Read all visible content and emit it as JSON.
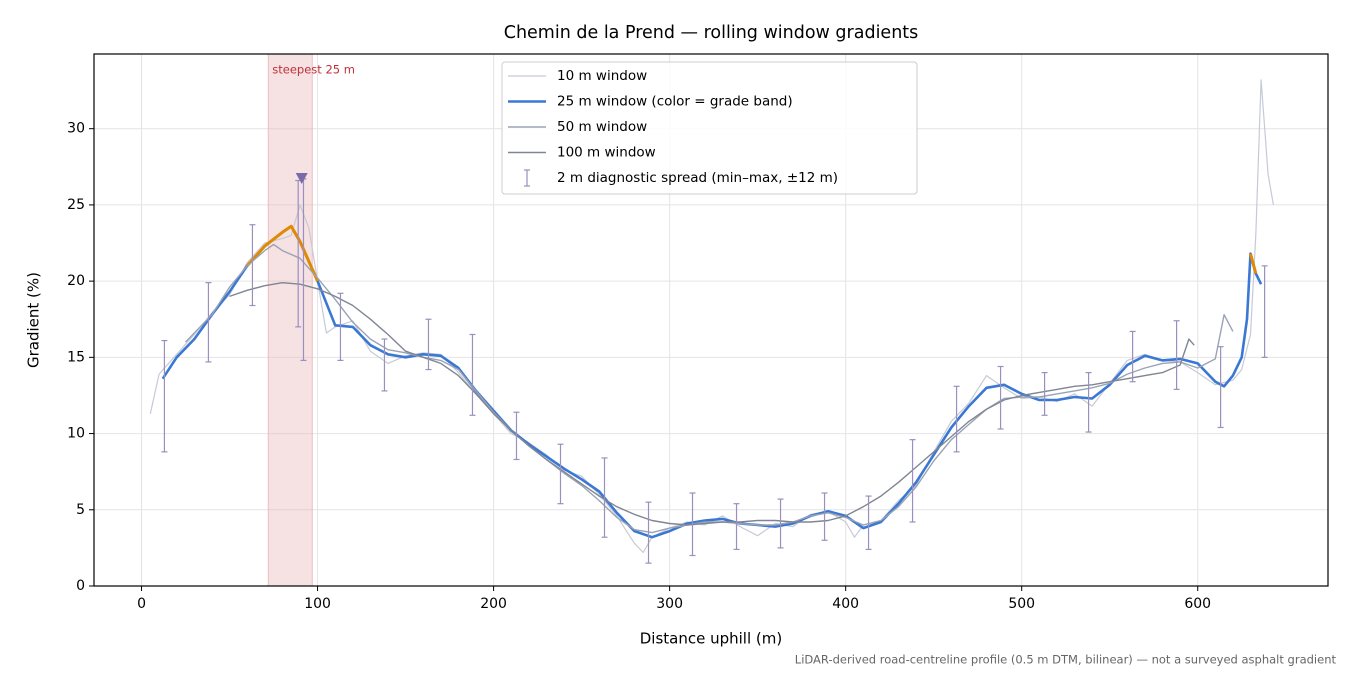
{
  "chart_data": {
    "type": "line",
    "title": "Chemin de la Prend — rolling window gradients",
    "xlabel": "Distance uphill (m)",
    "ylabel": "Gradient (%)",
    "footnote": "LiDAR-derived road-centreline profile (0.5 m DTM, bilinear) — not a surveyed asphalt gradient",
    "xlim": [
      -27,
      674
    ],
    "ylim": [
      0,
      34.9
    ],
    "xticks": [
      0,
      100,
      200,
      300,
      400,
      500,
      600
    ],
    "yticks": [
      0,
      5,
      10,
      15,
      20,
      25,
      30
    ],
    "grid": true,
    "legend": "upper center",
    "span": {
      "x": [
        72,
        97
      ],
      "color": "#e8b4b8",
      "label": "steepest 25 m",
      "label_color": "#c0303a"
    },
    "marker": {
      "x": 91,
      "y": 26.7,
      "color": "#7b6aa8"
    },
    "series": [
      {
        "name": "10 m window",
        "color": "#c5cad6",
        "width": 1.2,
        "x": [
          5,
          10,
          20,
          30,
          40,
          50,
          60,
          70,
          80,
          85,
          90,
          95,
          100,
          105,
          110,
          120,
          130,
          140,
          150,
          160,
          170,
          180,
          190,
          200,
          210,
          220,
          230,
          240,
          250,
          260,
          270,
          280,
          285,
          290,
          300,
          310,
          320,
          330,
          340,
          350,
          360,
          370,
          380,
          390,
          400,
          405,
          410,
          420,
          430,
          440,
          450,
          460,
          470,
          480,
          490,
          500,
          510,
          520,
          530,
          540,
          550,
          560,
          570,
          580,
          590,
          600,
          610,
          620,
          625,
          630,
          633,
          636,
          640,
          643
        ],
        "values": [
          11.3,
          13.9,
          15.2,
          16.5,
          17.9,
          19.1,
          21.2,
          22.5,
          22.8,
          23,
          25,
          23.5,
          20,
          16.6,
          17,
          17.4,
          15.4,
          14.6,
          15.1,
          15.3,
          15.2,
          14,
          12.6,
          11.3,
          10,
          9.4,
          8.6,
          7.6,
          7.2,
          6,
          4.6,
          2.8,
          2.2,
          3.2,
          3.8,
          4.2,
          4,
          4.6,
          3.9,
          3.3,
          4.1,
          3.9,
          4.7,
          4.9,
          4.2,
          3.2,
          4,
          4.3,
          5.6,
          6.6,
          8.8,
          10.8,
          12,
          13.8,
          13,
          12.3,
          12.4,
          12.1,
          12.6,
          11.8,
          13.3,
          14.8,
          15.2,
          14.8,
          14.7,
          14,
          13.2,
          13.5,
          14.2,
          16.5,
          23,
          33.2,
          27,
          25
        ]
      },
      {
        "name": "25 m window (color = grade band)",
        "color": "#3a78d4",
        "width": 2.6,
        "grade_bands": [
          {
            "min": 20,
            "color": "#e08a00"
          }
        ],
        "x": [
          12,
          20,
          30,
          40,
          50,
          60,
          70,
          80,
          85,
          90,
          100,
          110,
          120,
          130,
          140,
          150,
          160,
          170,
          180,
          190,
          200,
          210,
          220,
          230,
          240,
          250,
          260,
          270,
          280,
          290,
          300,
          310,
          320,
          330,
          340,
          350,
          360,
          370,
          380,
          390,
          400,
          410,
          420,
          430,
          440,
          450,
          460,
          470,
          480,
          490,
          500,
          510,
          520,
          530,
          540,
          550,
          560,
          570,
          580,
          590,
          600,
          610,
          615,
          620,
          625,
          628,
          630,
          633,
          636
        ],
        "values": [
          13.6,
          15,
          16.2,
          17.8,
          19.3,
          21,
          22.3,
          23.2,
          23.6,
          22.6,
          20,
          17.1,
          17,
          15.8,
          15.2,
          15,
          15.2,
          15.1,
          14.3,
          12.8,
          11.5,
          10.2,
          9.3,
          8.5,
          7.7,
          7,
          6.2,
          4.8,
          3.6,
          3.2,
          3.6,
          4.1,
          4.3,
          4.4,
          4.1,
          4,
          3.9,
          4.1,
          4.6,
          4.9,
          4.6,
          3.8,
          4.2,
          5.4,
          6.8,
          8.6,
          10.4,
          11.8,
          13,
          13.2,
          12.6,
          12.2,
          12.2,
          12.4,
          12.3,
          13.2,
          14.5,
          15.1,
          14.8,
          14.9,
          14.6,
          13.4,
          13.1,
          13.8,
          15,
          17.5,
          21.8,
          20.5,
          19.8
        ]
      },
      {
        "name": "50 m window",
        "color": "#9aa3b5",
        "width": 1.4,
        "x": [
          25,
          40,
          50,
          60,
          70,
          75,
          80,
          90,
          100,
          110,
          120,
          130,
          140,
          150,
          160,
          170,
          180,
          190,
          200,
          210,
          220,
          230,
          240,
          250,
          260,
          270,
          280,
          290,
          300,
          310,
          320,
          330,
          340,
          350,
          360,
          370,
          380,
          390,
          400,
          410,
          420,
          430,
          440,
          450,
          460,
          470,
          480,
          490,
          500,
          510,
          520,
          530,
          540,
          550,
          560,
          570,
          580,
          590,
          600,
          610,
          615,
          620
        ],
        "values": [
          16,
          17.8,
          19.6,
          21,
          22,
          22.4,
          22,
          21.5,
          20.2,
          18.8,
          17.3,
          16.2,
          15.5,
          15.3,
          15,
          14.8,
          14.2,
          12.8,
          11.4,
          10.2,
          9.2,
          8.3,
          7.4,
          6.6,
          5.6,
          4.5,
          3.7,
          3.5,
          3.8,
          4,
          4.2,
          4.2,
          4.1,
          4,
          4,
          4.2,
          4.6,
          4.8,
          4.5,
          4,
          4.3,
          5.2,
          6.5,
          8.2,
          9.6,
          10.6,
          11.6,
          12.3,
          12.4,
          12.4,
          12.6,
          12.8,
          13,
          13.3,
          13.9,
          14.3,
          14.6,
          14.7,
          14.3,
          14.9,
          17.8,
          16.7
        ]
      },
      {
        "name": "100 m window",
        "color": "#7f8594",
        "width": 1.4,
        "x": [
          50,
          60,
          70,
          80,
          90,
          100,
          110,
          120,
          130,
          140,
          150,
          160,
          170,
          180,
          190,
          200,
          210,
          220,
          230,
          240,
          250,
          260,
          270,
          280,
          290,
          300,
          310,
          320,
          330,
          340,
          350,
          360,
          370,
          380,
          390,
          400,
          410,
          420,
          430,
          440,
          450,
          460,
          470,
          480,
          490,
          500,
          510,
          520,
          530,
          540,
          550,
          560,
          570,
          580,
          590,
          595,
          598
        ],
        "values": [
          19,
          19.4,
          19.7,
          19.9,
          19.8,
          19.5,
          19,
          18.4,
          17.5,
          16.5,
          15.4,
          15,
          14.6,
          13.8,
          12.6,
          11.3,
          10.2,
          9.2,
          8.3,
          7.5,
          6.7,
          5.9,
          5.2,
          4.7,
          4.3,
          4.1,
          4,
          4.1,
          4.2,
          4.2,
          4.3,
          4.3,
          4.2,
          4.2,
          4.3,
          4.6,
          5.2,
          5.9,
          6.8,
          7.8,
          8.8,
          9.8,
          10.8,
          11.6,
          12.2,
          12.5,
          12.7,
          12.9,
          13.1,
          13.2,
          13.4,
          13.6,
          13.8,
          14,
          14.5,
          16.2,
          15.8
        ]
      }
    ],
    "errorbars": {
      "name": "2 m diagnostic spread (min–max, ±12 m)",
      "color": "#9a8fbf",
      "x": [
        13,
        38,
        63,
        89,
        92,
        113,
        138,
        163,
        188,
        213,
        238,
        263,
        288,
        313,
        338,
        363,
        388,
        413,
        438,
        463,
        488,
        513,
        538,
        563,
        588,
        613,
        638
      ],
      "lo": [
        8.8,
        14.7,
        18.4,
        17,
        14.8,
        14.8,
        12.8,
        14.2,
        11.2,
        8.3,
        5.4,
        3.2,
        1.5,
        2,
        2.4,
        2.5,
        3,
        2.4,
        4.2,
        8.8,
        10.3,
        11.2,
        10.1,
        13.4,
        12.9,
        10.4,
        15
      ],
      "hi": [
        16.1,
        19.9,
        23.7,
        26.6,
        26.7,
        19.2,
        16.2,
        17.5,
        16.5,
        11.4,
        9.3,
        8.4,
        5.5,
        6.1,
        5.4,
        5.7,
        6.1,
        5.9,
        9.6,
        13.1,
        14.4,
        14,
        14,
        16.7,
        17.4,
        15.7,
        21
      ]
    }
  }
}
